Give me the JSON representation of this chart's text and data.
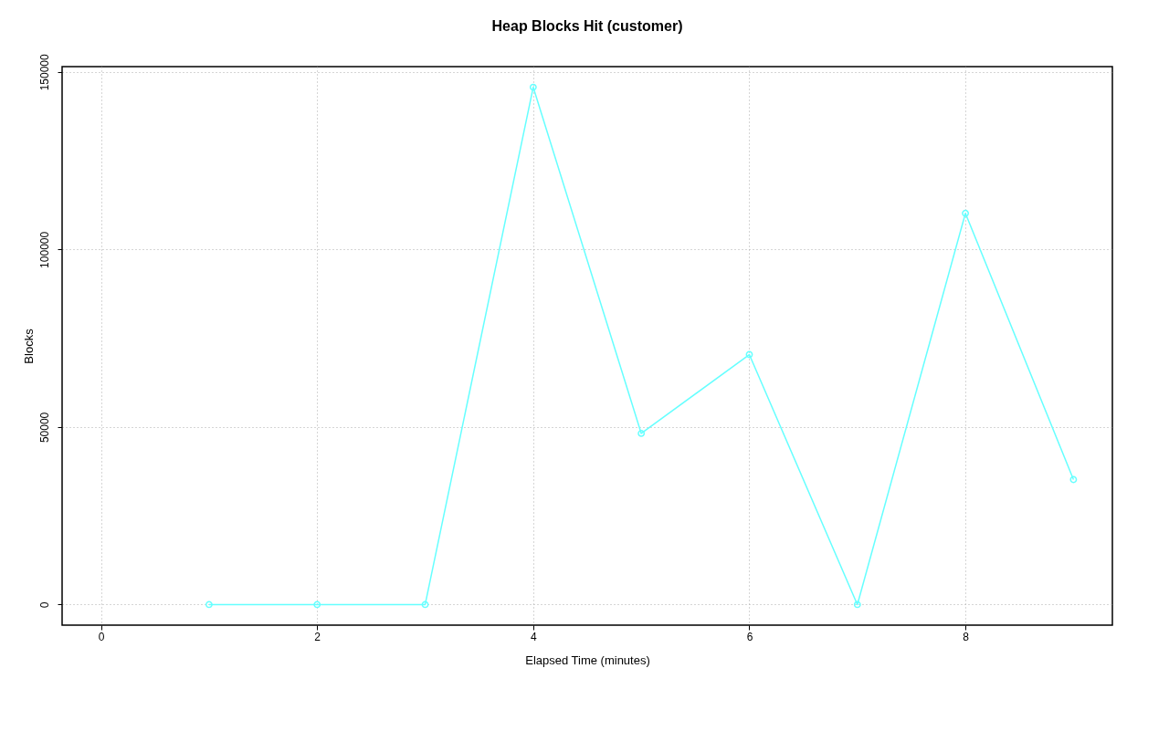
{
  "chart_data": {
    "type": "line",
    "title": "Heap Blocks Hit (customer)",
    "xlabel": "Elapsed Time (minutes)",
    "ylabel": "Blocks",
    "x": [
      1,
      2,
      3,
      4,
      5,
      6,
      7,
      8,
      9
    ],
    "series": [
      {
        "color": "#66ffff",
        "values": [
          0,
          0,
          0,
          145700,
          48200,
          70400,
          0,
          110200,
          35200
        ]
      }
    ],
    "xlim": [
      -0.36,
      9.36
    ],
    "ylim": [
      -5800,
      151500
    ],
    "xticks": [
      0,
      2,
      4,
      6,
      8
    ],
    "yticks": [
      0,
      50000,
      100000,
      150000
    ],
    "grid": true,
    "marker": "circle",
    "line_style": "solid"
  }
}
